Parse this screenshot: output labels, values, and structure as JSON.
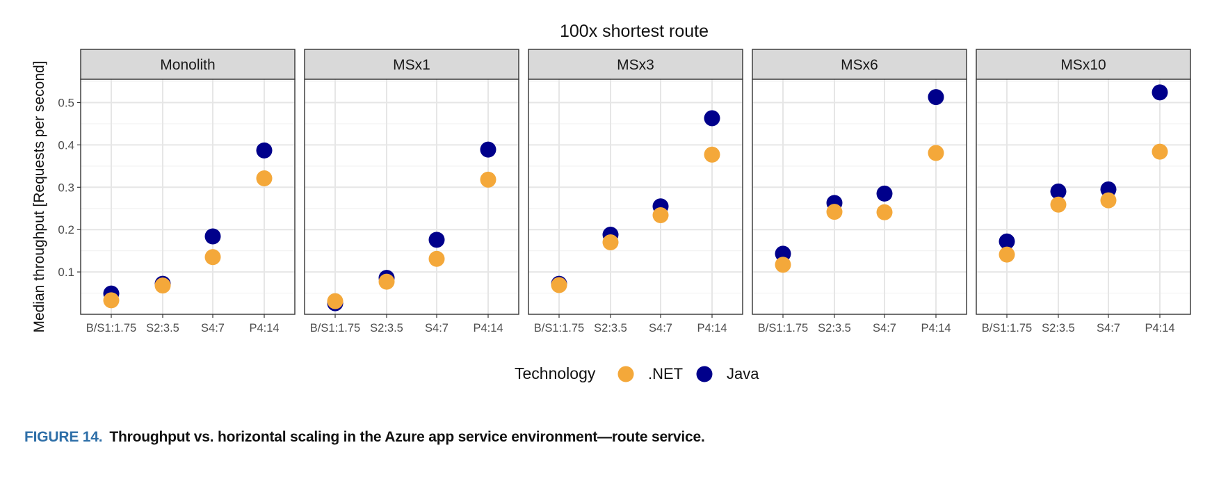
{
  "chart_data": {
    "type": "scatter",
    "title": "100x shortest route",
    "ylabel": "Median throughput [Requests per second]",
    "xlabel": "",
    "categories": [
      "B/S1:1.75",
      "S2:3.5",
      "S4:7",
      "P4:14"
    ],
    "y_ticks": [
      "0.1",
      "0.2",
      "0.3",
      "0.4",
      "0.5"
    ],
    "ylim": [
      0.0,
      0.555
    ],
    "grid": true,
    "legend": {
      "title": "Technology",
      "placement": "bottom",
      "entries": [
        {
          "name": ".NET",
          "color": "#F4A83A"
        },
        {
          "name": "Java",
          "color": "#00008B"
        }
      ]
    },
    "panels": [
      {
        "name": "Monolith",
        "series": [
          {
            "name": "Java",
            "values": [
              0.049,
              0.072,
              0.184,
              0.387
            ]
          },
          {
            "name": ".NET",
            "values": [
              0.033,
              0.068,
              0.135,
              0.321
            ]
          }
        ]
      },
      {
        "name": "MSx1",
        "series": [
          {
            "name": "Java",
            "values": [
              0.026,
              0.086,
              0.176,
              0.389
            ]
          },
          {
            "name": ".NET",
            "values": [
              0.031,
              0.077,
              0.131,
              0.318
            ]
          }
        ]
      },
      {
        "name": "MSx3",
        "series": [
          {
            "name": "Java",
            "values": [
              0.072,
              0.188,
              0.255,
              0.463
            ]
          },
          {
            "name": ".NET",
            "values": [
              0.069,
              0.17,
              0.234,
              0.377
            ]
          }
        ]
      },
      {
        "name": "MSx6",
        "series": [
          {
            "name": "Java",
            "values": [
              0.143,
              0.263,
              0.285,
              0.513
            ]
          },
          {
            "name": ".NET",
            "values": [
              0.117,
              0.242,
              0.241,
              0.381
            ]
          }
        ]
      },
      {
        "name": "MSx10",
        "series": [
          {
            "name": "Java",
            "values": [
              0.172,
              0.29,
              0.295,
              0.524
            ]
          },
          {
            "name": ".NET",
            "values": [
              0.141,
              0.259,
              0.269,
              0.384
            ]
          }
        ]
      }
    ]
  },
  "caption": {
    "label": "FIGURE 14.",
    "text": "Throughput vs. horizontal scaling in the Azure app service environment—route service."
  }
}
